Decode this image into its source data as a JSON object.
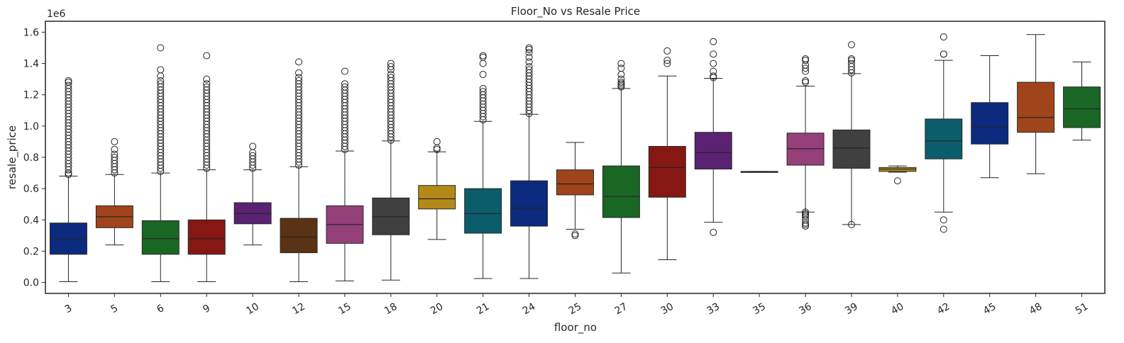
{
  "chart_data": {
    "type": "box",
    "title": "Floor_No vs Resale Price",
    "xlabel": "floor_no",
    "ylabel": "resale_price",
    "y_scale_label": "1e6",
    "ylim": [
      -0.07,
      1.67
    ],
    "yticks": [
      "0.0",
      "0.2",
      "0.4",
      "0.6",
      "0.8",
      "1.0",
      "1.2",
      "1.4",
      "1.6"
    ],
    "ytick_values": [
      0.0,
      0.2,
      0.4,
      0.6,
      0.8,
      1.0,
      1.2,
      1.4,
      1.6
    ],
    "grid": false,
    "categories": [
      "3",
      "5",
      "6",
      "9",
      "10",
      "12",
      "15",
      "18",
      "20",
      "21",
      "24",
      "25",
      "27",
      "30",
      "33",
      "35",
      "36",
      "39",
      "40",
      "42",
      "45",
      "48",
      "51"
    ],
    "colors": [
      "#0c2a7e",
      "#a0441c",
      "#1a6624",
      "#861713",
      "#5a2272",
      "#5a3214",
      "#954079",
      "#404040",
      "#b38a19",
      "#0b5d6b",
      "#0c2a7e",
      "#a0441c",
      "#1a6624",
      "#861713",
      "#5a2272",
      "#5a3214",
      "#954079",
      "#404040",
      "#b38a19",
      "#0b5d6b",
      "#0c2a7e",
      "#a0441c",
      "#1a6624"
    ],
    "boxes": [
      {
        "cat": "3",
        "wlo": 0.005,
        "q1": 0.18,
        "med": 0.275,
        "q3": 0.38,
        "whi": 0.68,
        "out": [
          0.69,
          0.7,
          0.72,
          0.74,
          0.76,
          0.78,
          0.8,
          0.82,
          0.84,
          0.86,
          0.88,
          0.9,
          0.92,
          0.94,
          0.96,
          0.98,
          1.0,
          1.02,
          1.04,
          1.06,
          1.08,
          1.1,
          1.12,
          1.14,
          1.16,
          1.18,
          1.2,
          1.22,
          1.24,
          1.26,
          1.28,
          1.29
        ]
      },
      {
        "cat": "5",
        "wlo": 0.24,
        "q1": 0.35,
        "med": 0.42,
        "q3": 0.49,
        "whi": 0.69,
        "out": [
          0.7,
          0.72,
          0.74,
          0.76,
          0.78,
          0.8,
          0.82,
          0.85,
          0.9
        ]
      },
      {
        "cat": "6",
        "wlo": 0.005,
        "q1": 0.18,
        "med": 0.28,
        "q3": 0.395,
        "whi": 0.7,
        "out": [
          0.71,
          0.73,
          0.75,
          0.77,
          0.79,
          0.81,
          0.83,
          0.85,
          0.87,
          0.89,
          0.91,
          0.93,
          0.95,
          0.97,
          0.99,
          1.01,
          1.03,
          1.05,
          1.07,
          1.09,
          1.11,
          1.13,
          1.15,
          1.17,
          1.19,
          1.21,
          1.23,
          1.25,
          1.27,
          1.29,
          1.32,
          1.36,
          1.5
        ]
      },
      {
        "cat": "9",
        "wlo": 0.005,
        "q1": 0.18,
        "med": 0.28,
        "q3": 0.4,
        "whi": 0.72,
        "out": [
          0.73,
          0.75,
          0.77,
          0.79,
          0.81,
          0.83,
          0.85,
          0.87,
          0.89,
          0.91,
          0.93,
          0.95,
          0.97,
          0.99,
          1.01,
          1.03,
          1.05,
          1.07,
          1.09,
          1.11,
          1.13,
          1.15,
          1.17,
          1.19,
          1.21,
          1.23,
          1.25,
          1.27,
          1.3,
          1.45
        ]
      },
      {
        "cat": "10",
        "wlo": 0.24,
        "q1": 0.375,
        "med": 0.44,
        "q3": 0.51,
        "whi": 0.72,
        "out": [
          0.73,
          0.75,
          0.77,
          0.79,
          0.81,
          0.83,
          0.87
        ]
      },
      {
        "cat": "12",
        "wlo": 0.005,
        "q1": 0.19,
        "med": 0.29,
        "q3": 0.41,
        "whi": 0.74,
        "out": [
          0.75,
          0.77,
          0.79,
          0.81,
          0.83,
          0.85,
          0.87,
          0.89,
          0.91,
          0.93,
          0.95,
          0.97,
          0.99,
          1.01,
          1.03,
          1.05,
          1.07,
          1.09,
          1.11,
          1.13,
          1.15,
          1.17,
          1.19,
          1.21,
          1.23,
          1.25,
          1.27,
          1.29,
          1.31,
          1.34,
          1.41
        ]
      },
      {
        "cat": "15",
        "wlo": 0.01,
        "q1": 0.25,
        "med": 0.37,
        "q3": 0.49,
        "whi": 0.84,
        "out": [
          0.85,
          0.87,
          0.89,
          0.91,
          0.93,
          0.95,
          0.97,
          0.99,
          1.01,
          1.03,
          1.05,
          1.07,
          1.09,
          1.11,
          1.13,
          1.15,
          1.17,
          1.19,
          1.21,
          1.23,
          1.25,
          1.27,
          1.35
        ]
      },
      {
        "cat": "18",
        "wlo": 0.015,
        "q1": 0.305,
        "med": 0.42,
        "q3": 0.54,
        "whi": 0.905,
        "out": [
          0.91,
          0.93,
          0.95,
          0.97,
          0.99,
          1.01,
          1.03,
          1.05,
          1.07,
          1.09,
          1.11,
          1.13,
          1.15,
          1.17,
          1.19,
          1.21,
          1.23,
          1.25,
          1.27,
          1.29,
          1.31,
          1.33,
          1.36,
          1.38,
          1.4
        ]
      },
      {
        "cat": "20",
        "wlo": 0.275,
        "q1": 0.47,
        "med": 0.535,
        "q3": 0.62,
        "whi": 0.835,
        "out": [
          0.85,
          0.86,
          0.9
        ]
      },
      {
        "cat": "21",
        "wlo": 0.025,
        "q1": 0.315,
        "med": 0.44,
        "q3": 0.6,
        "whi": 1.03,
        "out": [
          1.04,
          1.06,
          1.08,
          1.1,
          1.12,
          1.14,
          1.16,
          1.18,
          1.2,
          1.22,
          1.24,
          1.33,
          1.4,
          1.44,
          1.45
        ]
      },
      {
        "cat": "24",
        "wlo": 0.025,
        "q1": 0.36,
        "med": 0.475,
        "q3": 0.65,
        "whi": 1.075,
        "out": [
          1.08,
          1.1,
          1.12,
          1.14,
          1.16,
          1.18,
          1.2,
          1.22,
          1.24,
          1.26,
          1.28,
          1.3,
          1.32,
          1.34,
          1.36,
          1.38,
          1.41,
          1.44,
          1.47,
          1.49,
          1.5
        ]
      },
      {
        "cat": "25",
        "wlo": 0.34,
        "q1": 0.56,
        "med": 0.63,
        "q3": 0.72,
        "whi": 0.895,
        "out": [
          0.3,
          0.31
        ]
      },
      {
        "cat": "27",
        "wlo": 0.06,
        "q1": 0.415,
        "med": 0.55,
        "q3": 0.745,
        "whi": 1.24,
        "out": [
          1.25,
          1.26,
          1.27,
          1.28,
          1.3,
          1.33,
          1.37,
          1.4
        ]
      },
      {
        "cat": "30",
        "wlo": 0.145,
        "q1": 0.545,
        "med": 0.735,
        "q3": 0.87,
        "whi": 1.32,
        "out": [
          1.4,
          1.42,
          1.48
        ]
      },
      {
        "cat": "33",
        "wlo": 0.385,
        "q1": 0.725,
        "med": 0.83,
        "q3": 0.96,
        "whi": 1.305,
        "out": [
          0.32,
          1.31,
          1.32,
          1.35,
          1.4,
          1.46,
          1.54
        ]
      },
      {
        "cat": "35",
        "wlo": 0.705,
        "q1": 0.705,
        "med": 0.708,
        "q3": 0.71,
        "whi": 0.71,
        "out": []
      },
      {
        "cat": "36",
        "wlo": 0.45,
        "q1": 0.75,
        "med": 0.855,
        "q3": 0.955,
        "whi": 1.255,
        "out": [
          0.36,
          0.37,
          0.38,
          0.4,
          0.42,
          0.43,
          0.44,
          0.45,
          1.28,
          1.29,
          1.35,
          1.37,
          1.39,
          1.42,
          1.43
        ]
      },
      {
        "cat": "39",
        "wlo": 0.37,
        "q1": 0.73,
        "med": 0.86,
        "q3": 0.975,
        "whi": 1.335,
        "out": [
          0.37,
          1.34,
          1.36,
          1.38,
          1.4,
          1.42,
          1.43,
          1.52
        ]
      },
      {
        "cat": "40",
        "wlo": 0.705,
        "q1": 0.71,
        "med": 0.725,
        "q3": 0.735,
        "whi": 0.745,
        "out": [
          0.65
        ]
      },
      {
        "cat": "42",
        "wlo": 0.45,
        "q1": 0.79,
        "med": 0.905,
        "q3": 1.045,
        "whi": 1.42,
        "out": [
          0.34,
          0.4,
          1.46,
          1.46,
          1.57
        ]
      },
      {
        "cat": "45",
        "wlo": 0.67,
        "q1": 0.885,
        "med": 0.995,
        "q3": 1.15,
        "whi": 1.45,
        "out": []
      },
      {
        "cat": "48",
        "wlo": 0.695,
        "q1": 0.96,
        "med": 1.055,
        "q3": 1.28,
        "whi": 1.585,
        "out": []
      },
      {
        "cat": "51",
        "wlo": 0.91,
        "q1": 0.99,
        "med": 1.11,
        "q3": 1.25,
        "whi": 1.41,
        "out": []
      }
    ]
  }
}
